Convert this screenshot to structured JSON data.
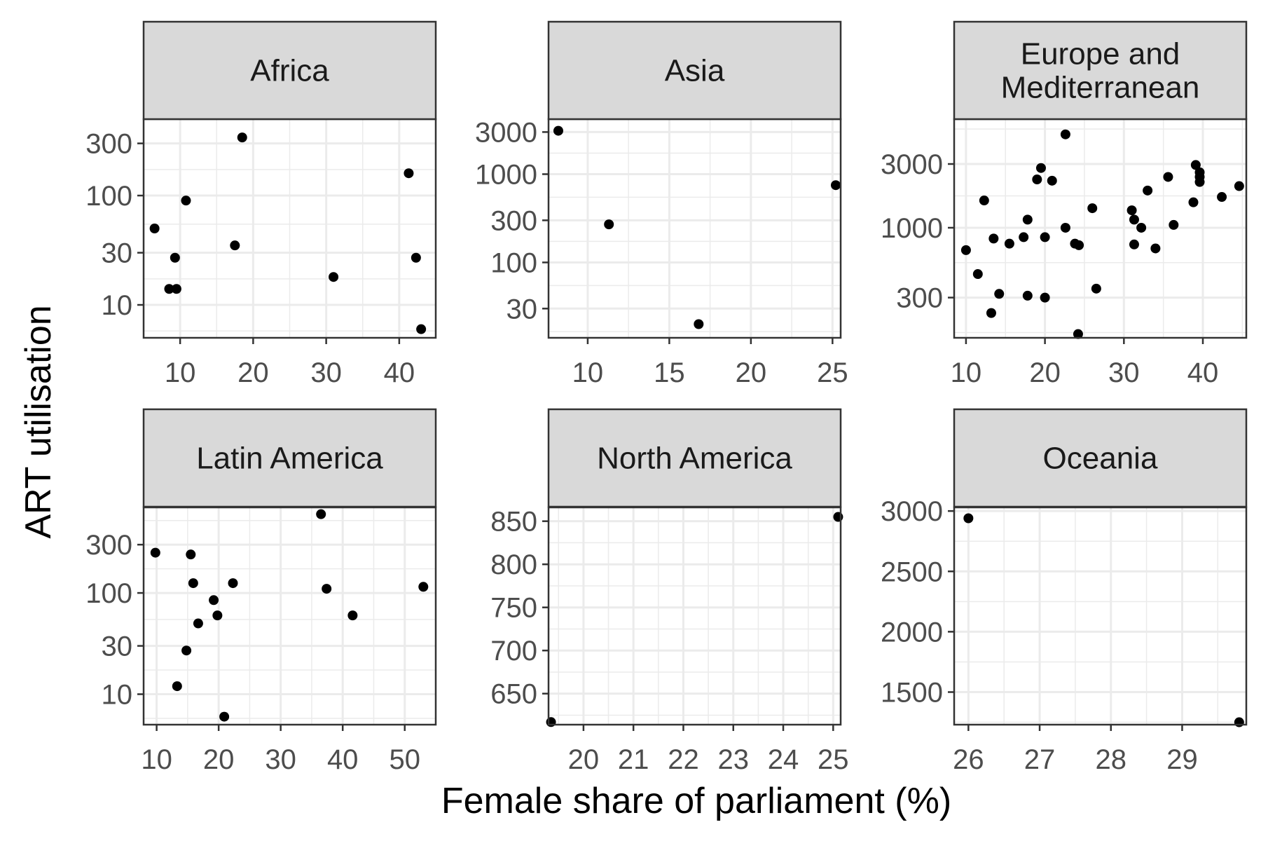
{
  "chart_data": {
    "type": "scatter",
    "xlabel": "Female share of parliament (%)",
    "ylabel": "ART utilisation",
    "colors": {
      "strip_fill": "#d9d9d9",
      "border": "#333333",
      "grid": "#ebebeb",
      "point": "#000000"
    },
    "grid": true,
    "panels": [
      {
        "title": [
          "Africa"
        ],
        "ylog": true,
        "xlim": [
          5,
          45
        ],
        "ylim": [
          5,
          500
        ],
        "xticks": [
          10,
          20,
          30,
          40
        ],
        "yticks": [
          10,
          30,
          100,
          300
        ],
        "points": [
          [
            6.5,
            50
          ],
          [
            8.5,
            14
          ],
          [
            9.3,
            27
          ],
          [
            9.5,
            14
          ],
          [
            10.8,
            90
          ],
          [
            17.5,
            35
          ],
          [
            18.5,
            340
          ],
          [
            31,
            18
          ],
          [
            41.3,
            160
          ],
          [
            42.3,
            27
          ],
          [
            43,
            6
          ]
        ]
      },
      {
        "title": [
          "Asia"
        ],
        "ylog": true,
        "xlim": [
          7.6,
          25.5
        ],
        "ylim": [
          14,
          4200
        ],
        "xticks": [
          10,
          15,
          20,
          25
        ],
        "yticks": [
          30,
          100,
          300,
          1000,
          3000
        ],
        "points": [
          [
            8.2,
            3100
          ],
          [
            11.3,
            270
          ],
          [
            16.8,
            20
          ],
          [
            25.2,
            750
          ]
        ]
      },
      {
        "title": [
          "Europe and",
          "Mediterranean"
        ],
        "ylog": true,
        "xlim": [
          8.5,
          45.5
        ],
        "ylim": [
          150,
          6500
        ],
        "xticks": [
          10,
          20,
          30,
          40
        ],
        "yticks": [
          300,
          1000,
          3000
        ],
        "points": [
          [
            10,
            680
          ],
          [
            11.5,
            450
          ],
          [
            12.3,
            1600
          ],
          [
            13.2,
            230
          ],
          [
            13.5,
            830
          ],
          [
            14.2,
            320
          ],
          [
            15.5,
            760
          ],
          [
            17.3,
            850
          ],
          [
            17.8,
            1150
          ],
          [
            17.8,
            310
          ],
          [
            19,
            2300
          ],
          [
            19.5,
            2800
          ],
          [
            20,
            300
          ],
          [
            20,
            850
          ],
          [
            20.9,
            2250
          ],
          [
            22.6,
            5000
          ],
          [
            22.6,
            1000
          ],
          [
            23.8,
            760
          ],
          [
            24.2,
            160
          ],
          [
            24.3,
            740
          ],
          [
            26,
            1400
          ],
          [
            26.5,
            350
          ],
          [
            31,
            1350
          ],
          [
            31.3,
            1150
          ],
          [
            31.3,
            750
          ],
          [
            32.2,
            1000
          ],
          [
            33,
            1900
          ],
          [
            34,
            700
          ],
          [
            35.6,
            2400
          ],
          [
            36.3,
            1050
          ],
          [
            38.8,
            1550
          ],
          [
            39.1,
            2950
          ],
          [
            39.6,
            2200
          ],
          [
            39.6,
            2600
          ],
          [
            39.6,
            2400
          ],
          [
            42.4,
            1700
          ],
          [
            44.6,
            2050
          ]
        ]
      },
      {
        "title": [
          "Latin America"
        ],
        "ylog": true,
        "xlim": [
          7.9,
          55
        ],
        "ylim": [
          5,
          700
        ],
        "xticks": [
          10,
          20,
          30,
          40,
          50
        ],
        "yticks": [
          10,
          30,
          100,
          300
        ],
        "points": [
          [
            9.8,
            250
          ],
          [
            13.3,
            12
          ],
          [
            14.8,
            27
          ],
          [
            15.5,
            240
          ],
          [
            15.9,
            125
          ],
          [
            16.7,
            50
          ],
          [
            19.2,
            85
          ],
          [
            19.8,
            60
          ],
          [
            20.9,
            6
          ],
          [
            22.3,
            125
          ],
          [
            36.5,
            600
          ],
          [
            37.4,
            110
          ],
          [
            41.6,
            60
          ],
          [
            53,
            115
          ]
        ]
      },
      {
        "title": [
          "North America"
        ],
        "ylog": false,
        "xlim": [
          19.3,
          25.15
        ],
        "ylim": [
          614,
          866
        ],
        "xticks": [
          20,
          21,
          22,
          23,
          24,
          25
        ],
        "yticks": [
          650,
          700,
          750,
          800,
          850
        ],
        "points": [
          [
            19.35,
            617
          ],
          [
            25.1,
            855
          ]
        ]
      },
      {
        "title": [
          "Oceania"
        ],
        "ylog": false,
        "xlim": [
          25.8,
          29.9
        ],
        "ylim": [
          1230,
          3030
        ],
        "xticks": [
          26,
          27,
          28,
          29
        ],
        "yticks": [
          1500,
          2000,
          2500,
          3000
        ],
        "points": [
          [
            26,
            2940
          ],
          [
            29.8,
            1250
          ]
        ]
      }
    ]
  }
}
